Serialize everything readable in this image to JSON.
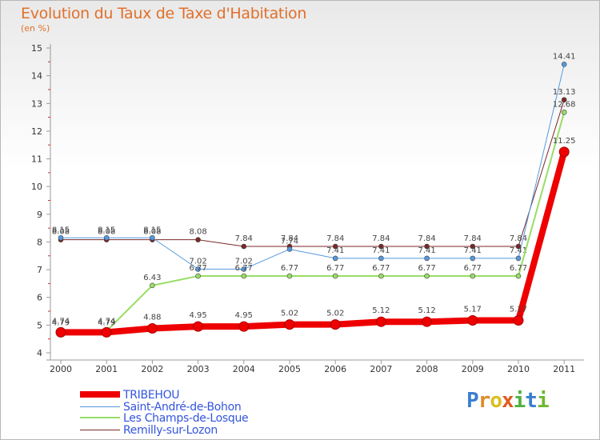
{
  "title": "Evolution du Taux de Taxe d'Habitation",
  "unit": "(en %)",
  "logo": [
    {
      "ch": "P",
      "color": "#3a7ecf"
    },
    {
      "ch": "r",
      "color": "#e08a2a"
    },
    {
      "ch": "o",
      "color": "#d8c020"
    },
    {
      "ch": "x",
      "color": "#e05a20"
    },
    {
      "ch": "i",
      "color": "#50b040"
    },
    {
      "ch": "t",
      "color": "#3a7ecf"
    },
    {
      "ch": "i",
      "color": "#70b830"
    }
  ],
  "chart_data": {
    "type": "line",
    "title": "Evolution du Taux de Taxe d'Habitation",
    "ylabel": "(en %)",
    "xlabel": "",
    "ylim": [
      4,
      15
    ],
    "yticks": [
      "4",
      "5",
      "6",
      "7",
      "8",
      "9",
      "10",
      "11",
      "12",
      "13",
      "14",
      "15"
    ],
    "categories": [
      "2000",
      "2001",
      "2002",
      "2003",
      "2004",
      "2005",
      "2006",
      "2007",
      "2008",
      "2009",
      "2010",
      "2011"
    ],
    "series": [
      {
        "name": "Remilly-sur-Lozon",
        "color": "#7a2828",
        "width": 1,
        "values": [
          8.08,
          8.08,
          8.08,
          8.08,
          7.84,
          7.84,
          7.84,
          7.84,
          7.84,
          7.84,
          7.84,
          13.13
        ],
        "labels": [
          "8.08",
          "8.08",
          "8.08",
          "8.08",
          "7.84",
          "7.84",
          "7.84",
          "7.84",
          "7.84",
          "7.84",
          "7.84",
          "13.13"
        ]
      },
      {
        "name": "Saint-André-de-Bohon",
        "color": "#5599dd",
        "width": 1,
        "values": [
          8.15,
          8.15,
          8.15,
          7.02,
          7.02,
          7.74,
          7.41,
          7.41,
          7.41,
          7.41,
          7.41,
          14.41
        ],
        "labels": [
          "8.15",
          "8.15",
          "8.15",
          "7.02",
          "7.02",
          "7.74",
          "7.41",
          "7.41",
          "7.41",
          "7.41",
          "7.41",
          "14.41"
        ]
      },
      {
        "name": "Les Champs-de-Losque",
        "color": "#99dd66",
        "width": 2,
        "values": [
          4.79,
          4.79,
          6.43,
          6.77,
          6.77,
          6.77,
          6.77,
          6.77,
          6.77,
          6.77,
          6.77,
          12.68
        ],
        "labels": [
          "4.79",
          "4.79",
          "6.43",
          "6.77",
          "6.77",
          "6.77",
          "6.77",
          "6.77",
          "6.77",
          "6.77",
          "6.77",
          "12.68"
        ]
      },
      {
        "name": "TRIBEHOU",
        "color": "#ee0000",
        "width": 8,
        "values": [
          4.74,
          4.74,
          4.88,
          4.95,
          4.95,
          5.02,
          5.02,
          5.12,
          5.12,
          5.17,
          5.17,
          11.25
        ],
        "labels": [
          "4.74",
          "4.74",
          "4.88",
          "4.95",
          "4.95",
          "5.02",
          "5.02",
          "5.12",
          "5.12",
          "5.17",
          "5.17",
          "11.25"
        ]
      }
    ],
    "legend": [
      {
        "name": "TRIBEHOU",
        "color": "#ee0000",
        "width": 8
      },
      {
        "name": "Saint-André-de-Bohon",
        "color": "#5599dd",
        "width": 1
      },
      {
        "name": "Les Champs-de-Losque",
        "color": "#99dd66",
        "width": 2
      },
      {
        "name": "Remilly-sur-Lozon",
        "color": "#7a2828",
        "width": 1
      }
    ],
    "legend_position": "bottom-left",
    "grid": false
  }
}
